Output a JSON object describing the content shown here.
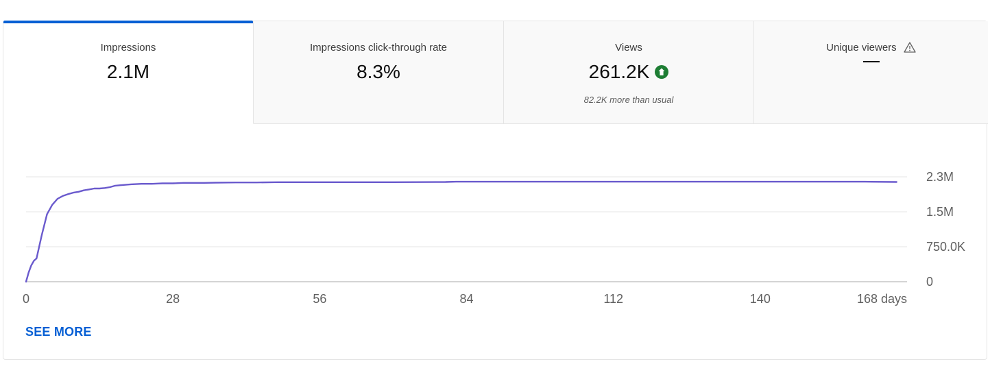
{
  "tabs": [
    {
      "label": "Impressions",
      "value": "2.1M",
      "sub": ""
    },
    {
      "label": "Impressions click-through rate",
      "value": "8.3%",
      "sub": ""
    },
    {
      "label": "Views",
      "value": "261.2K",
      "sub": "82.2K more than usual"
    },
    {
      "label": "Unique viewers",
      "value": "",
      "sub": ""
    }
  ],
  "see_more_label": "SEE MORE",
  "colors": {
    "accent": "#065fd4",
    "line": "#6a5acd",
    "up": "#1e7e34"
  },
  "icons": {
    "views_trend": "arrow-up-circle-icon",
    "unique_viewers": "warning-triangle-icon"
  },
  "chart_data": {
    "type": "line",
    "xlabel": "",
    "ylabel": "",
    "x_ticks": [
      "0",
      "28",
      "56",
      "84",
      "112",
      "140",
      "168 days"
    ],
    "x_tick_values": [
      0,
      28,
      56,
      84,
      112,
      140,
      168
    ],
    "y_ticks": [
      "0",
      "750.0K",
      "1.5M",
      "2.3M"
    ],
    "y_tick_values": [
      0,
      750000,
      1500000,
      2250000
    ],
    "xlim": [
      0,
      168
    ],
    "ylim": [
      0,
      2250000
    ],
    "grid": true,
    "series": [
      {
        "values_x": [
          0,
          0.5,
          1,
          1.5,
          2,
          3,
          4,
          5,
          6,
          7,
          8,
          9,
          10,
          11,
          12,
          13,
          14,
          15,
          16,
          17,
          18,
          19,
          20,
          22,
          24,
          26,
          28,
          30,
          32,
          34,
          36,
          40,
          44,
          48,
          52,
          56,
          60,
          70,
          80,
          82,
          84,
          100,
          120,
          140,
          160,
          166
        ],
        "values_y": [
          0,
          200000,
          350000,
          450000,
          500000,
          1000000,
          1450000,
          1650000,
          1780000,
          1840000,
          1880000,
          1910000,
          1930000,
          1960000,
          1980000,
          2000000,
          2000000,
          2010000,
          2030000,
          2060000,
          2070000,
          2080000,
          2090000,
          2100000,
          2100000,
          2110000,
          2110000,
          2120000,
          2120000,
          2120000,
          2125000,
          2130000,
          2130000,
          2135000,
          2135000,
          2135000,
          2135000,
          2135000,
          2140000,
          2145000,
          2145000,
          2145000,
          2145000,
          2145000,
          2145000,
          2140000
        ]
      }
    ]
  }
}
